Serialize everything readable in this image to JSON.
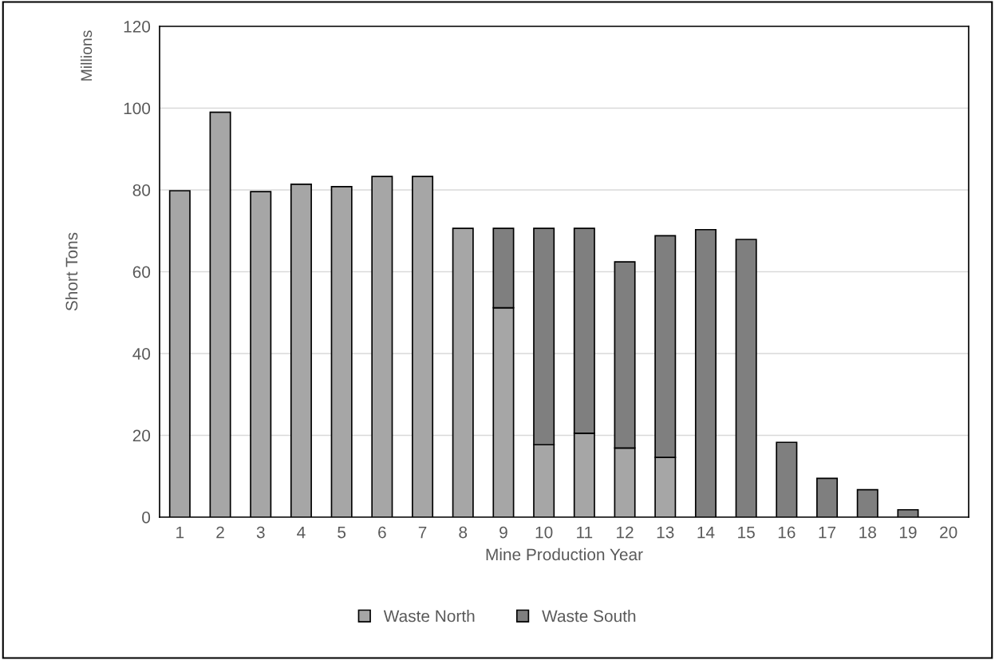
{
  "chart_data": {
    "type": "bar",
    "stacked": true,
    "xlabel": "Mine Production Year",
    "ylabel": "Short Tons",
    "annotations": [
      "Millions"
    ],
    "categories": [
      "1",
      "2",
      "3",
      "4",
      "5",
      "6",
      "7",
      "8",
      "9",
      "10",
      "11",
      "12",
      "13",
      "14",
      "15",
      "16",
      "17",
      "18",
      "19",
      "20"
    ],
    "series": [
      {
        "name": "Waste North",
        "color": "#a6a6a6",
        "values": [
          79.8,
          99.0,
          79.6,
          81.4,
          80.8,
          83.3,
          83.3,
          70.6,
          51.2,
          17.7,
          20.5,
          16.9,
          14.6,
          null,
          null,
          null,
          null,
          null,
          null,
          null
        ]
      },
      {
        "name": "Waste South",
        "color": "#7f7f7f",
        "values": [
          null,
          null,
          null,
          null,
          null,
          null,
          null,
          null,
          19.4,
          52.9,
          50.1,
          45.5,
          54.2,
          70.3,
          67.9,
          18.3,
          9.5,
          6.7,
          1.8,
          null
        ]
      }
    ],
    "ylim": [
      0,
      120
    ],
    "yticks": [
      0,
      20,
      40,
      60,
      80,
      100,
      120
    ],
    "grid": "y",
    "legend": "bottom"
  }
}
